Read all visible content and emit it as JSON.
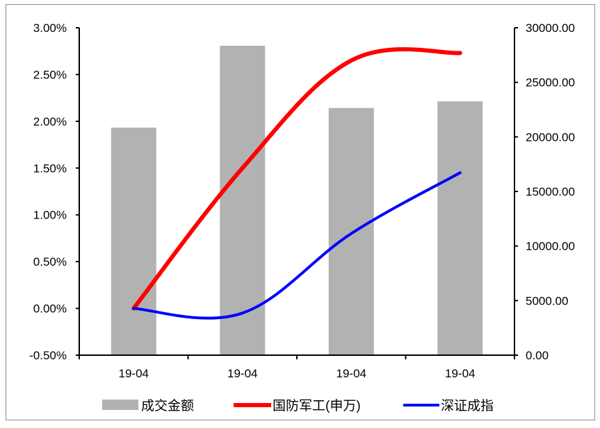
{
  "chart_data": {
    "type": "bar+line",
    "categories": [
      "19-04",
      "19-04",
      "19-04",
      "19-04"
    ],
    "bar_series": {
      "name": "成交金额",
      "axis": "right",
      "color": "#b2b2b2",
      "values": [
        20850,
        28350,
        22650,
        23250
      ]
    },
    "line_series": [
      {
        "name": "国防军工(申万)",
        "axis": "left",
        "color": "#ff0000",
        "values": [
          0.0,
          1.5,
          2.65,
          2.73
        ]
      },
      {
        "name": "深证成指",
        "axis": "left",
        "color": "#0000ff",
        "values": [
          0.0,
          -0.05,
          0.8,
          1.45
        ]
      }
    ],
    "left_axis": {
      "ylim": [
        -0.5,
        3.0
      ],
      "ticks": [
        "3.00%",
        "2.50%",
        "2.00%",
        "1.50%",
        "1.00%",
        "0.50%",
        "0.00%",
        "-0.50%"
      ],
      "tick_values": [
        3.0,
        2.5,
        2.0,
        1.5,
        1.0,
        0.5,
        0.0,
        -0.5
      ]
    },
    "right_axis": {
      "ylim": [
        0,
        30000
      ],
      "ticks": [
        "30000.00",
        "25000.00",
        "20000.00",
        "15000.00",
        "10000.00",
        "5000.00",
        "0.00"
      ],
      "tick_values": [
        30000,
        25000,
        20000,
        15000,
        10000,
        5000,
        0
      ]
    },
    "legend": {
      "position": "bottom",
      "items": [
        "成交金额",
        "国防军工(申万)",
        "深证成指"
      ]
    },
    "grid": false
  }
}
